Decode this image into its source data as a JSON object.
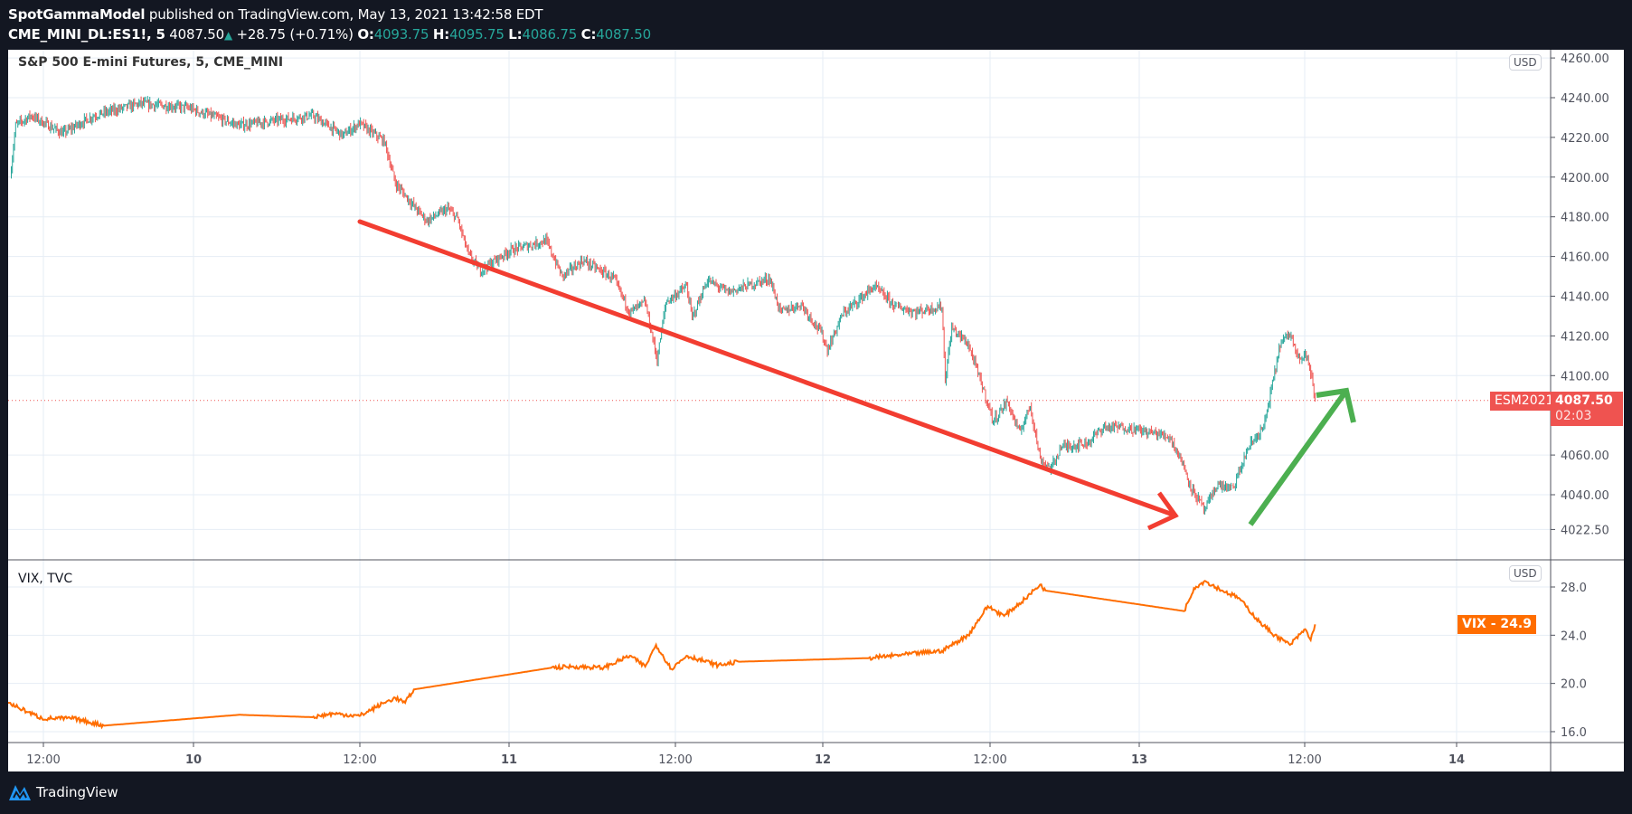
{
  "header": {
    "author": "SpotGammaModel",
    "published": "published on TradingView.com, May 13, 2021 13:42:58 EDT",
    "symbol": "CME_MINI_DL:ES1!, 5",
    "last": "4087.50",
    "change": "+28.75 (+0.71%)",
    "o_label": "O:",
    "o": "4093.75",
    "h_label": "H:",
    "h": "4095.75",
    "l_label": "L:",
    "l": "4086.75",
    "c_label": "C:",
    "c": "4087.50",
    "up_icon": "triangle-up"
  },
  "main_pane": {
    "title": "S&P 500 E-mini Futures, 5, CME_MINI",
    "currency": "USD",
    "price_ticks": [
      "4260.00",
      "4240.00",
      "4220.00",
      "4200.00",
      "4180.00",
      "4160.00",
      "4140.00",
      "4120.00",
      "4100.00",
      "4060.00",
      "4040.00",
      "4022.50"
    ],
    "last_label": {
      "symbol": "ESM2021",
      "price": "4087.50",
      "countdown": "02:03"
    },
    "colors": {
      "up": "#26a69a",
      "down": "#ef5350",
      "trend_down": "#f23d31",
      "trend_up": "#4caf50"
    }
  },
  "vix_pane": {
    "title": "VIX, TVC",
    "currency": "USD",
    "ticks": [
      "28.0",
      "24.0",
      "20.0",
      "16.0"
    ],
    "last_label": "VIX - 24.9",
    "color": "#ff6d00"
  },
  "time_axis": [
    "12:00",
    "10",
    "12:00",
    "11",
    "12:00",
    "12",
    "12:00",
    "13",
    "12:00",
    "14"
  ],
  "footer": {
    "brand": "TradingView"
  },
  "chart_data": [
    {
      "type": "candlestick",
      "title": "S&P 500 E-mini Futures, 5, CME_MINI",
      "interval": "5",
      "ylim": [
        4015,
        4262
      ],
      "last_price": 4087.5,
      "path": [
        [
          "2021-05-09 10:00",
          4200
        ],
        [
          "2021-05-09 10:25",
          4226
        ],
        [
          "2021-05-09 11:35",
          4231
        ],
        [
          "2021-05-09 14:00",
          4222
        ],
        [
          "2021-05-09 16:25",
          4231
        ],
        [
          "2021-05-09 19:55",
          4237
        ],
        [
          "2021-05-09 23:30",
          4235
        ],
        [
          "2021-05-10 03:30",
          4226
        ],
        [
          "2021-05-10 09:05",
          4231
        ],
        [
          "2021-05-10 11:25",
          4221
        ],
        [
          "2021-05-10 12:40",
          4227
        ],
        [
          "2021-05-10 14:35",
          4218
        ],
        [
          "2021-05-10 15:25",
          4197
        ],
        [
          "2021-05-10 17:00",
          4184
        ],
        [
          "2021-05-10 17:50",
          4178
        ],
        [
          "2021-05-10 19:25",
          4184
        ],
        [
          "2021-05-10 20:10",
          4179
        ],
        [
          "2021-05-10 21:00",
          4161
        ],
        [
          "2021-05-10 21:55",
          4153
        ],
        [
          "2021-05-11 00:10",
          4163
        ],
        [
          "2021-05-11 02:55",
          4168
        ],
        [
          "2021-05-11 04:10",
          4150
        ],
        [
          "2021-05-11 05:45",
          4158
        ],
        [
          "2021-05-11 08:05",
          4149
        ],
        [
          "2021-05-11 09:20",
          4132
        ],
        [
          "2021-05-11 10:30",
          4137
        ],
        [
          "2021-05-11 11:25",
          4108
        ],
        [
          "2021-05-11 12:05",
          4137
        ],
        [
          "2021-05-11 13:40",
          4145
        ],
        [
          "2021-05-11 14:05",
          4129
        ],
        [
          "2021-05-11 15:15",
          4148
        ],
        [
          "2021-05-11 16:50",
          4142
        ],
        [
          "2021-05-11 20:00",
          4149
        ],
        [
          "2021-05-11 20:50",
          4132
        ],
        [
          "2021-05-11 22:25",
          4136
        ],
        [
          "2021-05-12 00:00",
          4121
        ],
        [
          "2021-05-12 00:25",
          4113
        ],
        [
          "2021-05-12 01:35",
          4131
        ],
        [
          "2021-05-12 04:00",
          4145
        ],
        [
          "2021-05-12 05:35",
          4135
        ],
        [
          "2021-05-12 07:10",
          4132
        ],
        [
          "2021-05-12 09:10",
          4135
        ],
        [
          "2021-05-12 09:25",
          4098
        ],
        [
          "2021-05-12 09:55",
          4124
        ],
        [
          "2021-05-12 11:10",
          4116
        ],
        [
          "2021-05-12 12:20",
          4093
        ],
        [
          "2021-05-12 13:05",
          4077
        ],
        [
          "2021-05-12 14:10",
          4087
        ],
        [
          "2021-05-12 15:05",
          4071
        ],
        [
          "2021-05-12 15:55",
          4085
        ],
        [
          "2021-05-12 16:40",
          4058
        ],
        [
          "2021-05-12 17:30",
          4053
        ],
        [
          "2021-05-12 18:15",
          4064
        ],
        [
          "2021-05-12 20:15",
          4066
        ],
        [
          "2021-05-12 21:30",
          4074
        ],
        [
          "2021-05-12 23:05",
          4074
        ],
        [
          "2021-05-13 01:25",
          4071
        ],
        [
          "2021-05-13 02:35",
          4069
        ],
        [
          "2021-05-13 03:25",
          4058
        ],
        [
          "2021-05-13 04:15",
          4043
        ],
        [
          "2021-05-13 05:15",
          4032
        ],
        [
          "2021-05-13 06:10",
          4045
        ],
        [
          "2021-05-13 07:25",
          4043
        ],
        [
          "2021-05-13 08:35",
          4064
        ],
        [
          "2021-05-13 09:45",
          4074
        ],
        [
          "2021-05-13 10:20",
          4093
        ],
        [
          "2021-05-13 11:00",
          4116
        ],
        [
          "2021-05-13 11:45",
          4121
        ],
        [
          "2021-05-13 12:35",
          4108
        ],
        [
          "2021-05-13 13:00",
          4111
        ],
        [
          "2021-05-13 13:25",
          4098
        ],
        [
          "2021-05-13 13:40",
          4087.5
        ]
      ]
    },
    {
      "type": "line",
      "title": "VIX, TVC",
      "ylim": [
        15.3,
        29.2
      ],
      "last_value": 24.9,
      "path": [
        [
          "2021-05-09 09:50",
          18.4
        ],
        [
          "2021-05-09 12:25",
          17.1
        ],
        [
          "2021-05-09 14:50",
          17.1
        ],
        [
          "2021-05-09 17:10",
          16.5
        ],
        [
          "2021-05-10 03:30",
          17.4
        ],
        [
          "2021-05-10 09:05",
          17.2
        ],
        [
          "2021-05-10 10:40",
          17.5
        ],
        [
          "2021-05-10 12:40",
          17.3
        ],
        [
          "2021-05-10 14:35",
          18.4
        ],
        [
          "2021-05-10 15:25",
          18.8
        ],
        [
          "2021-05-10 16:10",
          18.4
        ],
        [
          "2021-05-10 16:50",
          19.5
        ],
        [
          "2021-05-11 03:20",
          21.3
        ],
        [
          "2021-05-11 04:55",
          21.4
        ],
        [
          "2021-05-11 07:20",
          21.3
        ],
        [
          "2021-05-11 09:20",
          22.3
        ],
        [
          "2021-05-11 10:30",
          21.4
        ],
        [
          "2021-05-11 11:20",
          23.2
        ],
        [
          "2021-05-11 12:30",
          21.2
        ],
        [
          "2021-05-11 13:40",
          22.3
        ],
        [
          "2021-05-11 16:05",
          21.5
        ],
        [
          "2021-05-11 17:40",
          21.8
        ],
        [
          "2021-05-12 03:35",
          22.1
        ],
        [
          "2021-05-12 06:20",
          22.4
        ],
        [
          "2021-05-12 09:10",
          22.7
        ],
        [
          "2021-05-12 11:10",
          24.0
        ],
        [
          "2021-05-12 12:40",
          26.4
        ],
        [
          "2021-05-12 13:55",
          25.6
        ],
        [
          "2021-05-12 15:30",
          27.0
        ],
        [
          "2021-05-12 16:40",
          28.2
        ],
        [
          "2021-05-12 17:05",
          27.7
        ],
        [
          "2021-05-13 03:40",
          26.0
        ],
        [
          "2021-05-13 04:25",
          27.9
        ],
        [
          "2021-05-13 05:15",
          28.5
        ],
        [
          "2021-05-13 06:35",
          27.7
        ],
        [
          "2021-05-13 07:50",
          27.1
        ],
        [
          "2021-05-13 09:25",
          25.1
        ],
        [
          "2021-05-13 10:35",
          24.0
        ],
        [
          "2021-05-13 11:45",
          23.2
        ],
        [
          "2021-05-13 12:55",
          24.5
        ],
        [
          "2021-05-13 13:20",
          23.6
        ],
        [
          "2021-05-13 13:40",
          24.9
        ]
      ]
    }
  ]
}
